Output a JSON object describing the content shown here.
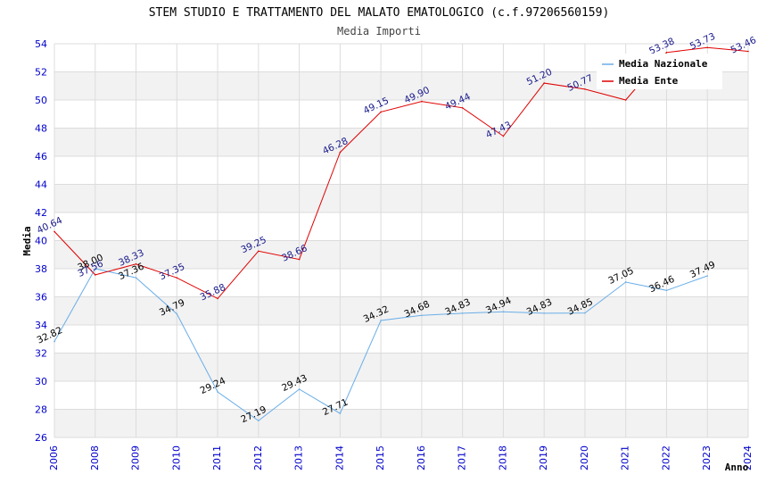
{
  "chart_data": {
    "type": "line",
    "title": "STEM STUDIO E TRATTAMENTO DEL MALATO EMATOLOGICO (c.f.97206560159)",
    "subtitle": "Media Importi",
    "xlabel": "Anno",
    "ylabel": "Media",
    "ylim": [
      26,
      54
    ],
    "yticks": [
      "26",
      "28",
      "30",
      "32",
      "34",
      "36",
      "38",
      "40",
      "42",
      "44",
      "46",
      "48",
      "50",
      "52",
      "54"
    ],
    "categories": [
      "2006",
      "2008",
      "2009",
      "2010",
      "2011",
      "2012",
      "2013",
      "2014",
      "2015",
      "2016",
      "2017",
      "2018",
      "2019",
      "2020",
      "2021",
      "2022",
      "2023",
      "2024"
    ],
    "grid": true,
    "legend_position": "top-right",
    "series": [
      {
        "name": "Media Nazionale",
        "color": "#6aaee8",
        "values": [
          32.82,
          38.0,
          37.36,
          34.79,
          29.24,
          27.19,
          29.43,
          27.71,
          34.32,
          34.68,
          34.83,
          34.94,
          34.83,
          34.85,
          37.05,
          36.46,
          37.49,
          null
        ],
        "labels": [
          "32.82",
          "38.00",
          "37.36",
          "34.79",
          "29.24",
          "27.19",
          "29.43",
          "27.71",
          "34.32",
          "34.68",
          "34.83",
          "34.94",
          "34.83",
          "34.85",
          "37.05",
          "36.46",
          "37.49",
          ""
        ]
      },
      {
        "name": "Media Ente",
        "color": "#e00000",
        "values": [
          40.64,
          37.56,
          38.33,
          37.35,
          35.88,
          39.25,
          38.66,
          46.28,
          49.15,
          49.9,
          49.44,
          47.43,
          51.2,
          50.77,
          50.0,
          53.38,
          53.73,
          53.46
        ],
        "labels": [
          "40.64",
          "37.56",
          "38.33",
          "37.35",
          "35.88",
          "39.25",
          "38.66",
          "46.28",
          "49.15",
          "49.90",
          "49.44",
          "47.43",
          "51.20",
          "50.77",
          "",
          "53.38",
          "53.73",
          "53.46"
        ]
      }
    ]
  }
}
